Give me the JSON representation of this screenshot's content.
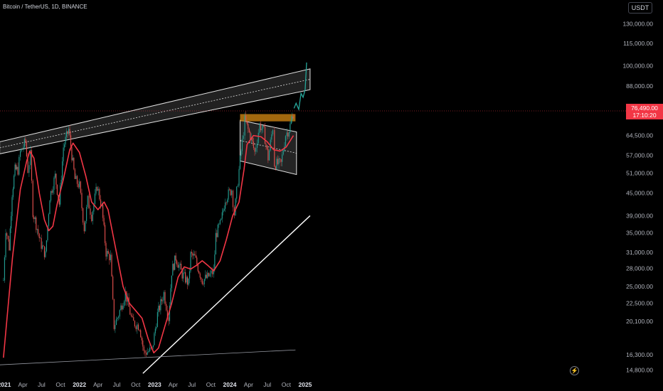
{
  "header": {
    "title": "Bitcoin / TetherUS, 1D, BINANCE",
    "currency_label": "USDT"
  },
  "price_badge": {
    "price": "76,490.00",
    "countdown": "17:10:20"
  },
  "icons": {
    "replay": "lightning-icon"
  },
  "colors": {
    "background": "#000000",
    "up": "#26a69a",
    "down": "#ef5350",
    "ma_line": "#f23645",
    "trendline": "#ffffff",
    "resistance_zone": "#c07a10",
    "price_badge": "#f23645",
    "projection": "#26a69a"
  },
  "chart_data": {
    "type": "line",
    "scale": "log",
    "grid": false,
    "title": "Bitcoin / TetherUS, 1D, BINANCE",
    "y_ticks": [
      130000,
      115000,
      100000,
      88000,
      76490,
      64500,
      57000,
      51000,
      45000,
      39000,
      35000,
      31000,
      28000,
      25000,
      22500,
      20100,
      16300,
      14800
    ],
    "y_tick_labels": [
      "130,000.00",
      "115,000.00",
      "100,000.00",
      "88,000.00",
      "76,490.00",
      "64,500.00",
      "57,000.00",
      "51,000.00",
      "45,000.00",
      "39,000.00",
      "35,000.00",
      "31,000.00",
      "28,000.00",
      "25,000.00",
      "22,500.00",
      "20,100.00",
      "16,300.00",
      "14,800.00"
    ],
    "x_ticks": [
      {
        "label": "2021",
        "date": "2021-01-01",
        "bold": true
      },
      {
        "label": "Apr",
        "date": "2021-04-01",
        "bold": false
      },
      {
        "label": "Jul",
        "date": "2021-07-01",
        "bold": false
      },
      {
        "label": "Oct",
        "date": "2021-10-01",
        "bold": false
      },
      {
        "label": "2022",
        "date": "2022-01-01",
        "bold": true
      },
      {
        "label": "Apr",
        "date": "2022-04-01",
        "bold": false
      },
      {
        "label": "Jul",
        "date": "2022-07-01",
        "bold": false
      },
      {
        "label": "Oct",
        "date": "2022-10-01",
        "bold": false
      },
      {
        "label": "2023",
        "date": "2023-01-01",
        "bold": true
      },
      {
        "label": "Apr",
        "date": "2023-04-01",
        "bold": false
      },
      {
        "label": "Jul",
        "date": "2023-07-01",
        "bold": false
      },
      {
        "label": "Oct",
        "date": "2023-10-01",
        "bold": false
      },
      {
        "label": "2024",
        "date": "2024-01-01",
        "bold": true
      },
      {
        "label": "Apr",
        "date": "2024-04-01",
        "bold": false
      },
      {
        "label": "Jul",
        "date": "2024-07-01",
        "bold": false
      },
      {
        "label": "Oct",
        "date": "2024-10-01",
        "bold": false
      },
      {
        "label": "2025",
        "date": "2025-01-01",
        "bold": true
      }
    ],
    "series": [
      {
        "type": "candles",
        "points": [
          {
            "x": "2020-12-28",
            "y": 26000
          },
          {
            "x": "2021-01-08",
            "y": 36000
          },
          {
            "x": "2021-01-25",
            "y": 32000
          },
          {
            "x": "2021-02-08",
            "y": 45000
          },
          {
            "x": "2021-02-22",
            "y": 52000
          },
          {
            "x": "2021-03-08",
            "y": 52000
          },
          {
            "x": "2021-03-20",
            "y": 58000
          },
          {
            "x": "2021-04-14",
            "y": 62000
          },
          {
            "x": "2021-04-25",
            "y": 52000
          },
          {
            "x": "2021-05-08",
            "y": 57000
          },
          {
            "x": "2021-05-20",
            "y": 40000
          },
          {
            "x": "2021-06-10",
            "y": 36000
          },
          {
            "x": "2021-06-25",
            "y": 33000
          },
          {
            "x": "2021-07-20",
            "y": 30500
          },
          {
            "x": "2021-08-10",
            "y": 44000
          },
          {
            "x": "2021-09-05",
            "y": 50000
          },
          {
            "x": "2021-09-25",
            "y": 42000
          },
          {
            "x": "2021-10-15",
            "y": 60000
          },
          {
            "x": "2021-11-10",
            "y": 67000
          },
          {
            "x": "2021-11-25",
            "y": 57000
          },
          {
            "x": "2021-12-10",
            "y": 49000
          },
          {
            "x": "2022-01-01",
            "y": 47000
          },
          {
            "x": "2022-01-24",
            "y": 36000
          },
          {
            "x": "2022-02-10",
            "y": 43000
          },
          {
            "x": "2022-03-01",
            "y": 39000
          },
          {
            "x": "2022-03-28",
            "y": 47000
          },
          {
            "x": "2022-04-20",
            "y": 41000
          },
          {
            "x": "2022-05-10",
            "y": 31000
          },
          {
            "x": "2022-06-01",
            "y": 30000
          },
          {
            "x": "2022-06-18",
            "y": 19500
          },
          {
            "x": "2022-07-10",
            "y": 21000
          },
          {
            "x": "2022-08-12",
            "y": 24000
          },
          {
            "x": "2022-09-15",
            "y": 20000
          },
          {
            "x": "2022-10-20",
            "y": 19500
          },
          {
            "x": "2022-11-10",
            "y": 16500
          },
          {
            "x": "2022-12-20",
            "y": 16800
          },
          {
            "x": "2023-01-15",
            "y": 21000
          },
          {
            "x": "2023-02-15",
            "y": 24000
          },
          {
            "x": "2023-03-10",
            "y": 20500
          },
          {
            "x": "2023-03-25",
            "y": 27500
          },
          {
            "x": "2023-04-14",
            "y": 30000
          },
          {
            "x": "2023-05-15",
            "y": 27000
          },
          {
            "x": "2023-06-15",
            "y": 25500
          },
          {
            "x": "2023-06-25",
            "y": 30500
          },
          {
            "x": "2023-07-15",
            "y": 30000
          },
          {
            "x": "2023-08-20",
            "y": 26000
          },
          {
            "x": "2023-09-15",
            "y": 26500
          },
          {
            "x": "2023-10-15",
            "y": 27500
          },
          {
            "x": "2023-10-25",
            "y": 34500
          },
          {
            "x": "2023-11-20",
            "y": 37500
          },
          {
            "x": "2023-12-10",
            "y": 43500
          },
          {
            "x": "2024-01-10",
            "y": 46000
          },
          {
            "x": "2024-01-23",
            "y": 39500
          },
          {
            "x": "2024-02-15",
            "y": 52000
          },
          {
            "x": "2024-03-01",
            "y": 62000
          },
          {
            "x": "2024-03-14",
            "y": 71000
          },
          {
            "x": "2024-04-15",
            "y": 63000
          },
          {
            "x": "2024-05-01",
            "y": 58000
          },
          {
            "x": "2024-05-25",
            "y": 69000
          },
          {
            "x": "2024-06-15",
            "y": 66000
          },
          {
            "x": "2024-07-05",
            "y": 56000
          },
          {
            "x": "2024-07-28",
            "y": 68000
          },
          {
            "x": "2024-08-05",
            "y": 54000
          },
          {
            "x": "2024-09-06",
            "y": 54000
          },
          {
            "x": "2024-09-28",
            "y": 65000
          },
          {
            "x": "2024-10-15",
            "y": 67000
          },
          {
            "x": "2024-10-30",
            "y": 72000
          },
          {
            "x": "2024-11-08",
            "y": 76490
          }
        ]
      },
      {
        "type": "moving-average",
        "points": [
          {
            "x": "2020-12-28",
            "y": 16000
          },
          {
            "x": "2021-02-10",
            "y": 30000
          },
          {
            "x": "2021-03-20",
            "y": 46000
          },
          {
            "x": "2021-04-20",
            "y": 55000
          },
          {
            "x": "2021-05-05",
            "y": 58500
          },
          {
            "x": "2021-05-25",
            "y": 56000
          },
          {
            "x": "2021-06-20",
            "y": 45000
          },
          {
            "x": "2021-07-15",
            "y": 38000
          },
          {
            "x": "2021-08-05",
            "y": 35500
          },
          {
            "x": "2021-08-25",
            "y": 36500
          },
          {
            "x": "2021-09-15",
            "y": 42000
          },
          {
            "x": "2021-10-15",
            "y": 49000
          },
          {
            "x": "2021-11-15",
            "y": 59000
          },
          {
            "x": "2021-12-01",
            "y": 61500
          },
          {
            "x": "2022-01-01",
            "y": 58000
          },
          {
            "x": "2022-02-01",
            "y": 50000
          },
          {
            "x": "2022-03-01",
            "y": 42500
          },
          {
            "x": "2022-04-01",
            "y": 40500
          },
          {
            "x": "2022-05-01",
            "y": 42500
          },
          {
            "x": "2022-05-20",
            "y": 40500
          },
          {
            "x": "2022-06-20",
            "y": 33000
          },
          {
            "x": "2022-08-01",
            "y": 25000
          },
          {
            "x": "2022-09-01",
            "y": 22500
          },
          {
            "x": "2022-10-01",
            "y": 21500
          },
          {
            "x": "2022-11-01",
            "y": 20500
          },
          {
            "x": "2022-12-01",
            "y": 18000
          },
          {
            "x": "2022-12-28",
            "y": 16500
          },
          {
            "x": "2023-01-20",
            "y": 17000
          },
          {
            "x": "2023-02-20",
            "y": 19500
          },
          {
            "x": "2023-03-25",
            "y": 22500
          },
          {
            "x": "2023-04-25",
            "y": 26500
          },
          {
            "x": "2023-05-25",
            "y": 28300
          },
          {
            "x": "2023-06-25",
            "y": 27900
          },
          {
            "x": "2023-07-25",
            "y": 28600
          },
          {
            "x": "2023-08-20",
            "y": 29400
          },
          {
            "x": "2023-09-15",
            "y": 28600
          },
          {
            "x": "2023-10-15",
            "y": 27600
          },
          {
            "x": "2023-11-15",
            "y": 29400
          },
          {
            "x": "2023-12-15",
            "y": 33500
          },
          {
            "x": "2024-01-15",
            "y": 39000
          },
          {
            "x": "2024-02-15",
            "y": 42500
          },
          {
            "x": "2024-03-10",
            "y": 52000
          },
          {
            "x": "2024-03-25",
            "y": 61000
          },
          {
            "x": "2024-04-25",
            "y": 64500
          },
          {
            "x": "2024-06-01",
            "y": 64000
          },
          {
            "x": "2024-07-01",
            "y": 62000
          },
          {
            "x": "2024-08-01",
            "y": 59000
          },
          {
            "x": "2024-09-01",
            "y": 58500
          },
          {
            "x": "2024-10-01",
            "y": 60000
          },
          {
            "x": "2024-11-05",
            "y": 64500
          }
        ]
      },
      {
        "type": "projection",
        "points": [
          {
            "x": "2024-11-08",
            "y": 76490
          },
          {
            "x": "2024-11-18",
            "y": 79000
          },
          {
            "x": "2024-12-01",
            "y": 76000
          },
          {
            "x": "2024-12-12",
            "y": 84000
          },
          {
            "x": "2024-12-22",
            "y": 82000
          },
          {
            "x": "2025-01-01",
            "y": 86000
          },
          {
            "x": "2025-01-08",
            "y": 102000
          }
        ]
      }
    ],
    "annotations": {
      "rising_channel": {
        "start": {
          "x": "2020-12-10",
          "y": 62000
        },
        "end": {
          "x": "2025-01-25",
          "y": 98000
        },
        "lower_start": {
          "x": "2020-12-10",
          "y": 57500
        },
        "lower_end": {
          "x": "2025-01-25",
          "y": 86000
        }
      },
      "descending_channel": {
        "start": {
          "x": "2024-02-20",
          "y": 71000
        },
        "end": {
          "x": "2024-11-20",
          "y": 66000
        },
        "lower_start": {
          "x": "2024-02-20",
          "y": 55000
        },
        "lower_end": {
          "x": "2024-11-20",
          "y": 50500
        }
      },
      "resistance_zone": {
        "x_start": "2024-02-20",
        "x_end": "2024-11-15",
        "y_low": 70500,
        "y_high": 73800
      },
      "support_line": {
        "start": {
          "x": "2022-11-05",
          "y": 14500
        },
        "end": {
          "x": "2025-01-25",
          "y": 39000
        }
      },
      "base_line": {
        "start": {
          "x": "2020-12-10",
          "y": 15300
        },
        "end": {
          "x": "2024-11-15",
          "y": 16800
        }
      }
    }
  }
}
